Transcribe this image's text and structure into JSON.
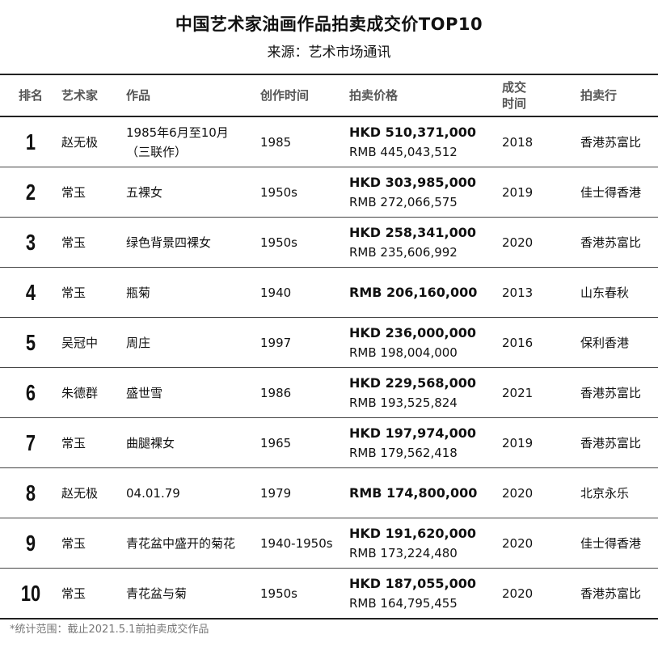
{
  "title": "中国艺术家油画作品拍卖成交价TOP10",
  "subtitle": "来源：艺术市场通讯",
  "headers": {
    "rank": "排名",
    "artist": "艺术家",
    "work": "作品",
    "created": "创作时间",
    "price": "拍卖价格",
    "deal_line1": "成交",
    "deal_line2": "时间",
    "house": "拍卖行"
  },
  "rows": [
    {
      "rank": "1",
      "artist": "赵无极",
      "work_line1": "1985年6月至10月",
      "work_line2": "（三联作）",
      "created": "1985",
      "price_main": "HKD 510,371,000",
      "price_sub": "RMB 445,043,512",
      "year": "2018",
      "house": "香港苏富比"
    },
    {
      "rank": "2",
      "artist": "常玉",
      "work_line1": "五裸女",
      "work_line2": "",
      "created": "1950s",
      "price_main": "HKD 303,985,000",
      "price_sub": "RMB 272,066,575",
      "year": "2019",
      "house": "佳士得香港"
    },
    {
      "rank": "3",
      "artist": "常玉",
      "work_line1": "绿色背景四裸女",
      "work_line2": "",
      "created": "1950s",
      "price_main": "HKD 258,341,000",
      "price_sub": "RMB 235,606,992",
      "year": "2020",
      "house": "香港苏富比"
    },
    {
      "rank": "4",
      "artist": "常玉",
      "work_line1": "瓶菊",
      "work_line2": "",
      "created": "1940",
      "price_main": "RMB 206,160,000",
      "price_sub": "",
      "year": "2013",
      "house": "山东春秋"
    },
    {
      "rank": "5",
      "artist": "吴冠中",
      "work_line1": "周庄",
      "work_line2": "",
      "created": "1997",
      "price_main": "HKD 236,000,000",
      "price_sub": "RMB 198,004,000",
      "year": "2016",
      "house": "保利香港"
    },
    {
      "rank": "6",
      "artist": "朱德群",
      "work_line1": "盛世雪",
      "work_line2": "",
      "created": "1986",
      "price_main": "HKD 229,568,000",
      "price_sub": "RMB 193,525,824",
      "year": "2021",
      "house": "香港苏富比"
    },
    {
      "rank": "7",
      "artist": "常玉",
      "work_line1": "曲腿裸女",
      "work_line2": "",
      "created": "1965",
      "price_main": "HKD 197,974,000",
      "price_sub": "RMB 179,562,418",
      "year": "2019",
      "house": "香港苏富比"
    },
    {
      "rank": "8",
      "artist": "赵无极",
      "work_line1": "04.01.79",
      "work_line2": "",
      "created": "1979",
      "price_main": "RMB 174,800,000",
      "price_sub": "",
      "year": "2020",
      "house": "北京永乐"
    },
    {
      "rank": "9",
      "artist": "常玉",
      "work_line1": "青花盆中盛开的菊花",
      "work_line2": "",
      "created": "1940-1950s",
      "price_main": "HKD 191,620,000",
      "price_sub": "RMB 173,224,480",
      "year": "2020",
      "house": "佳士得香港"
    },
    {
      "rank": "10",
      "artist": "常玉",
      "work_line1": "青花盆与菊",
      "work_line2": "",
      "created": "1950s",
      "price_main": "HKD 187,055,000",
      "price_sub": "RMB 164,795,455",
      "year": "2020",
      "house": "香港苏富比"
    }
  ],
  "footnote": "*统计范围：截止2021.5.1前拍卖成交作品"
}
